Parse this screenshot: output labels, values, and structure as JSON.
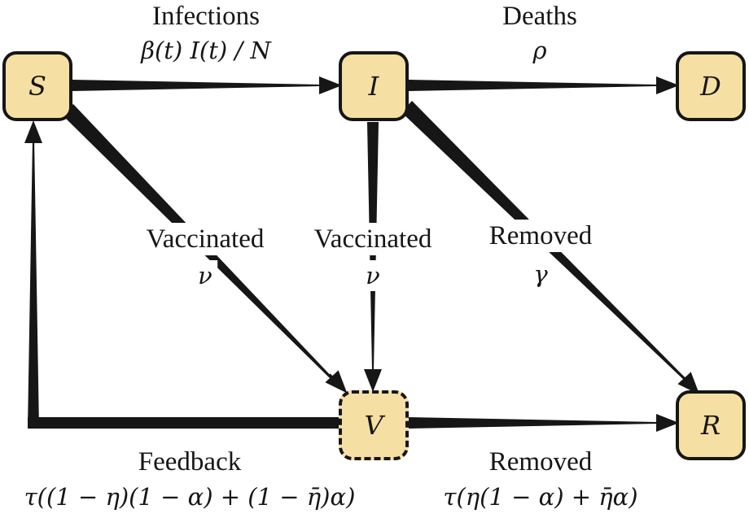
{
  "nodes": {
    "s": "S",
    "i": "I",
    "d": "D",
    "v": "V",
    "r": "R"
  },
  "edges": {
    "infections": {
      "label": "Infections",
      "rate": "β(t) I(t) / N"
    },
    "deaths": {
      "label": "Deaths",
      "rate": "ρ"
    },
    "vaccinated_s": {
      "label": "Vaccinated",
      "rate": "ν"
    },
    "vaccinated_i": {
      "label": "Vaccinated",
      "rate": "ν"
    },
    "removed_i": {
      "label": "Removed",
      "rate": "γ"
    },
    "feedback": {
      "label": "Feedback",
      "rate": "τ((1 − η)(1 − α) + (1 − η̄)α)"
    },
    "removed_v": {
      "label": "Removed",
      "rate": "τ(η(1 − α) + η̄α)"
    }
  },
  "colors": {
    "node_fill": "#f6dfa3",
    "stroke": "#161616",
    "background": "#ffffff"
  }
}
